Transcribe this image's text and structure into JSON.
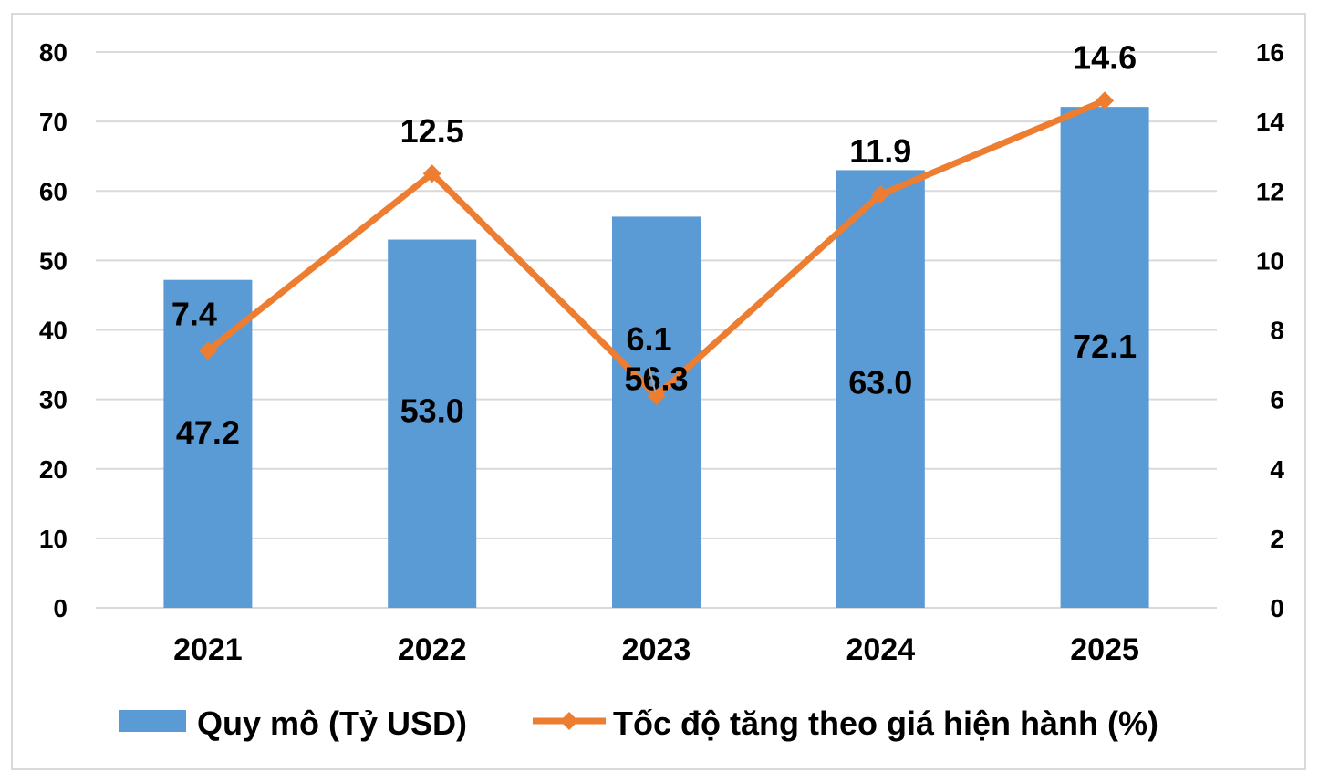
{
  "chart_data": {
    "type": "bar",
    "categories": [
      "2021",
      "2022",
      "2023",
      "2024",
      "2025"
    ],
    "series": [
      {
        "name": "Quy mô (Tỷ USD)",
        "type": "bar",
        "axis": "left",
        "values": [
          47.2,
          53.0,
          56.3,
          63.0,
          72.1
        ],
        "labels": [
          "47.2",
          "53.0",
          "56.3",
          "63.0",
          "72.1"
        ],
        "color": "#5b9bd5"
      },
      {
        "name": "Tốc độ tăng theo giá hiện hành (%)",
        "type": "line",
        "axis": "right",
        "values": [
          7.4,
          12.5,
          6.1,
          11.9,
          14.6
        ],
        "labels": [
          "7.4",
          "12.5",
          "6.1",
          "11.9",
          "14.6"
        ],
        "color": "#ed7d31"
      }
    ],
    "y_left": {
      "min": 0,
      "max": 80,
      "ticks": [
        "0",
        "10",
        "20",
        "30",
        "40",
        "50",
        "60",
        "70",
        "80"
      ]
    },
    "y_right": {
      "min": 0,
      "max": 16,
      "ticks": [
        "0",
        "2",
        "4",
        "6",
        "8",
        "10",
        "12",
        "14",
        "16"
      ]
    },
    "grid": true,
    "legend_position": "bottom"
  }
}
